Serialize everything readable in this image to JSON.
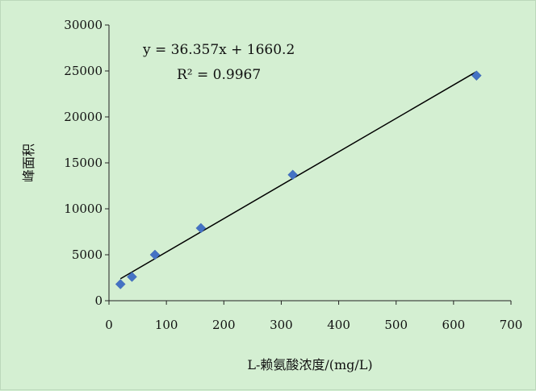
{
  "chart_data": {
    "type": "scatter",
    "title": "",
    "xlabel": "L-赖氨酸浓度/(mg/L)",
    "ylabel": "峰面积",
    "xlim": [
      0,
      700
    ],
    "ylim": [
      0,
      30000
    ],
    "x_ticks": [
      0,
      100,
      200,
      300,
      400,
      500,
      600,
      700
    ],
    "y_ticks": [
      0,
      5000,
      10000,
      15000,
      20000,
      25000,
      30000
    ],
    "grid": false,
    "legend": "none",
    "series": [
      {
        "x": [
          20,
          40,
          80,
          160,
          320,
          640
        ],
        "y": [
          1800,
          2600,
          5000,
          7900,
          13700,
          24500
        ],
        "marker": "diamond",
        "color": "#4472c4"
      }
    ],
    "trendline": {
      "x": [
        20,
        640
      ],
      "slope": 36.357,
      "intercept": 1660.2,
      "color": "#000000"
    },
    "annotations": {
      "equation": "y = 36.357x + 1660.2",
      "r_squared": "R² = 0.9967"
    }
  }
}
